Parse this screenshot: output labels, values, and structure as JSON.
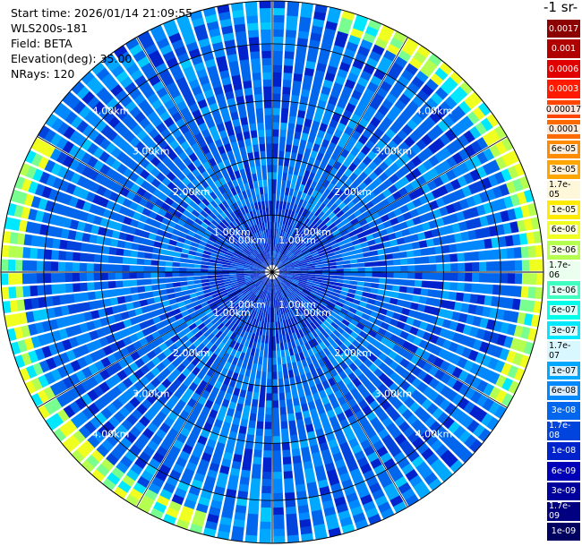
{
  "header": {
    "start_time": "Start time: 2026/01/14 21:09:55",
    "instrument": "WLS200s-181",
    "field": "Field: BETA",
    "elevation": "Elevation(deg): 35.00",
    "nrays": "NRays: 120"
  },
  "colorbar": {
    "title": "-1 sr-",
    "labels": [
      "0.0017",
      "0.001",
      "0.0006",
      "0.0003",
      "0.00017",
      "0.0001",
      "6e-05",
      "3e-05",
      "1.7e-05",
      "1e-05",
      "6e-06",
      "3e-06",
      "1.7e-06",
      "1e-06",
      "6e-07",
      "3e-07",
      "1.7e-07",
      "1e-07",
      "6e-08",
      "3e-08",
      "1.7e-08",
      "1e-08",
      "6e-09",
      "3e-09",
      "1.7e-09",
      "1e-09"
    ],
    "colors": [
      "#8b0000",
      "#b00000",
      "#e00000",
      "#ff1a00",
      "#ff4500",
      "#ff6a00",
      "#ff8c00",
      "#ffa500",
      "#ffc800",
      "#ffeb00",
      "#f0ff20",
      "#b4ff50",
      "#78ff90",
      "#40ffc0",
      "#00ffe8",
      "#00e8ff",
      "#00c8ff",
      "#00a8ff",
      "#0088ff",
      "#0066ee",
      "#0044dd",
      "#0022cc",
      "#0000b8",
      "#00009c",
      "#000080",
      "#000060"
    ]
  },
  "chart_data": {
    "type": "heatmap",
    "projection": "polar PPI scan",
    "n_rays": 120,
    "elevation_deg": 35.0,
    "range_rings_km": [
      1.0,
      2.0,
      3.0,
      4.0
    ],
    "ring_labels": [
      "1.00km",
      "2.00km",
      "3.00km",
      "4.00km"
    ],
    "center_label": "0.00km",
    "value_field": "BETA",
    "dominant_value_near": 3e-08,
    "outer_band_value_near": 6e-06
  }
}
